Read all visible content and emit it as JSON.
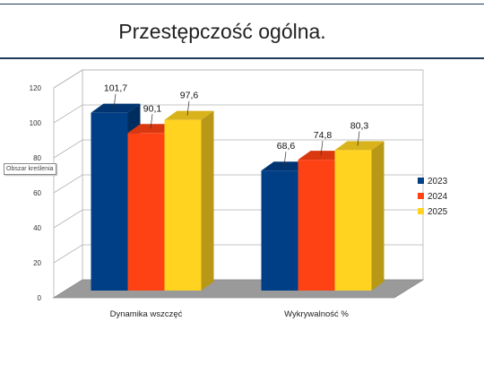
{
  "slide": {
    "title": "Przestępczość ogólna."
  },
  "tooltip": {
    "text": "Obszar kreślenia"
  },
  "chart_data": {
    "type": "bar",
    "categories": [
      "Dynamika wszczęć",
      "Wykrywalność %"
    ],
    "series": [
      {
        "name": "2023",
        "values": [
          101.7,
          68.6
        ],
        "labels": [
          "101,7",
          "68,6"
        ],
        "color": "#003e85"
      },
      {
        "name": "2024",
        "values": [
          90.1,
          74.8
        ],
        "labels": [
          "90,1",
          "74,8"
        ],
        "color": "#ff4213"
      },
      {
        "name": "2025",
        "values": [
          97.6,
          80.3
        ],
        "labels": [
          "97,6",
          "80,3"
        ],
        "color": "#ffd320"
      }
    ],
    "yticks": [
      "0",
      "20",
      "40",
      "60",
      "80",
      "100",
      "120"
    ],
    "ylim": [
      0,
      120
    ],
    "grid": true,
    "style": "3d",
    "legend_position": "right"
  }
}
